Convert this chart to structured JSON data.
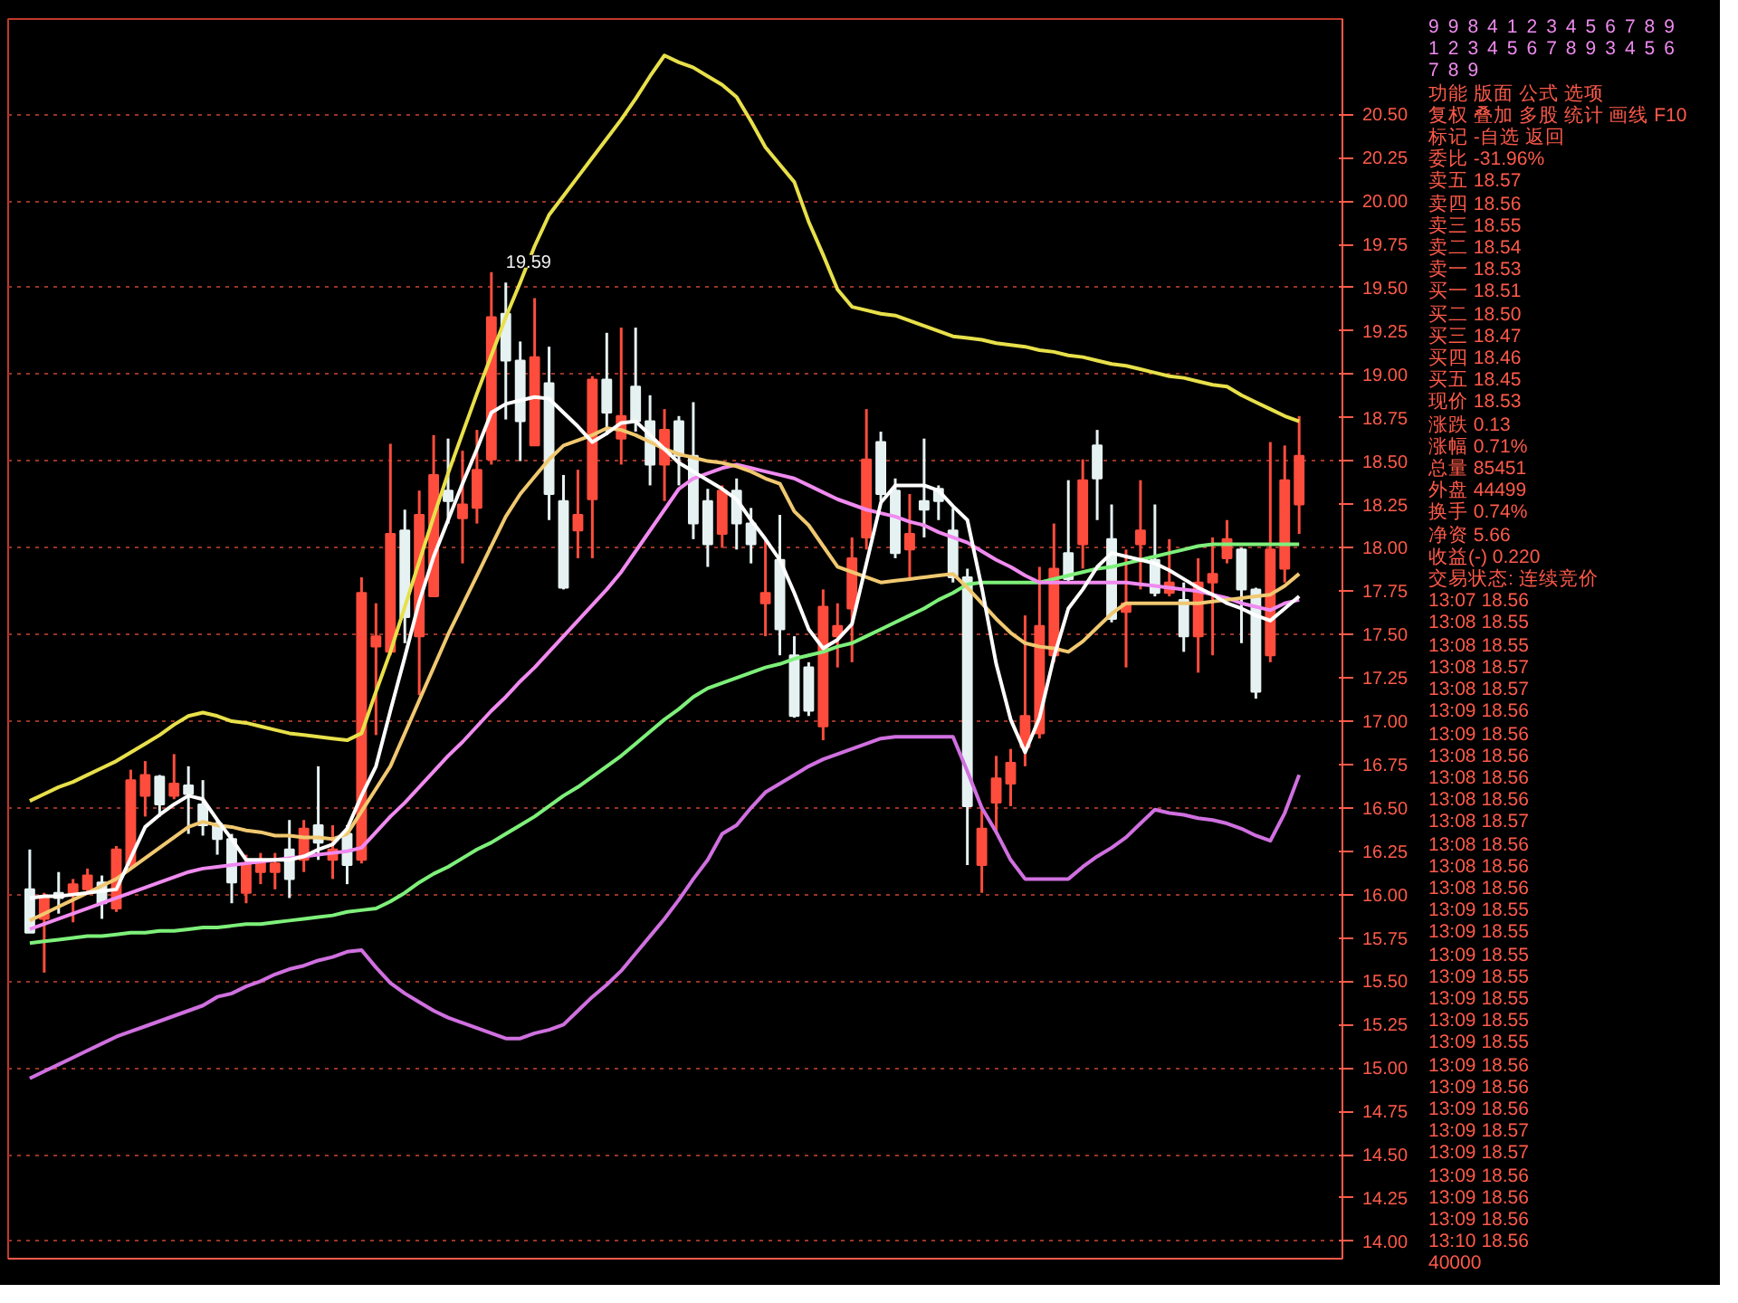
{
  "chart_data": {
    "type": "candlestick",
    "categories": [
      null,
      null,
      null,
      null,
      null,
      null,
      null,
      null,
      null,
      null,
      null,
      null,
      null,
      null,
      null,
      null,
      null,
      null,
      null,
      null,
      null,
      null,
      null,
      null,
      null,
      null,
      null,
      null,
      null,
      null,
      null,
      null,
      null,
      null,
      null,
      null,
      null,
      null,
      null,
      null,
      null,
      null,
      null,
      null,
      null,
      null,
      null,
      null,
      null,
      null,
      null,
      null,
      null,
      null,
      null,
      null,
      null,
      null,
      null,
      null,
      null,
      null,
      null,
      null,
      null,
      null,
      null,
      null,
      null,
      null,
      null,
      null,
      null,
      null,
      null,
      null,
      null,
      null,
      null,
      null,
      null,
      null,
      null,
      null,
      null,
      null,
      null,
      null,
      null
    ],
    "ohlc": [
      [
        16.03,
        16.26,
        15.78,
        15.78
      ],
      [
        15.86,
        16.01,
        15.55,
        15.98
      ],
      [
        16.01,
        16.13,
        15.89,
        15.98
      ],
      [
        16.0,
        16.09,
        15.84,
        16.06
      ],
      [
        16.03,
        16.15,
        16.0,
        16.11
      ],
      [
        16.07,
        16.11,
        15.86,
        15.95
      ],
      [
        15.92,
        16.28,
        15.9,
        16.26
      ],
      [
        16.17,
        16.72,
        16.15,
        16.66
      ],
      [
        16.57,
        16.77,
        16.45,
        16.69
      ],
      [
        16.68,
        16.69,
        16.45,
        16.52
      ],
      [
        16.57,
        16.81,
        16.55,
        16.64
      ],
      [
        16.63,
        16.74,
        16.35,
        16.58
      ],
      [
        16.52,
        16.66,
        16.34,
        16.4
      ],
      [
        16.41,
        16.43,
        16.23,
        16.32
      ],
      [
        16.32,
        16.35,
        15.95,
        16.07
      ],
      [
        16.01,
        16.23,
        15.95,
        16.18
      ],
      [
        16.13,
        16.24,
        16.06,
        16.2
      ],
      [
        16.13,
        16.24,
        16.03,
        16.18
      ],
      [
        16.26,
        16.43,
        15.98,
        16.09
      ],
      [
        16.2,
        16.43,
        16.13,
        16.38
      ],
      [
        16.4,
        16.74,
        16.2,
        16.3
      ],
      [
        16.2,
        16.4,
        16.09,
        16.26
      ],
      [
        16.35,
        16.4,
        16.06,
        16.17
      ],
      [
        16.2,
        17.83,
        16.18,
        17.74
      ],
      [
        17.43,
        17.68,
        16.92,
        17.49
      ],
      [
        17.4,
        18.6,
        17.38,
        18.08
      ],
      [
        18.1,
        18.22,
        17.45,
        17.6
      ],
      [
        17.49,
        18.33,
        17.15,
        18.19
      ],
      [
        17.72,
        18.65,
        17.72,
        18.42
      ],
      [
        18.33,
        18.63,
        18.14,
        18.27
      ],
      [
        18.17,
        18.56,
        17.91,
        18.25
      ],
      [
        18.23,
        18.68,
        18.14,
        18.45
      ],
      [
        18.51,
        19.59,
        18.48,
        19.33
      ],
      [
        19.35,
        19.53,
        18.74,
        19.08
      ],
      [
        19.08,
        19.19,
        18.5,
        18.73
      ],
      [
        18.59,
        19.44,
        18.59,
        19.1
      ],
      [
        18.95,
        19.16,
        18.16,
        18.31
      ],
      [
        18.27,
        18.42,
        17.76,
        17.77
      ],
      [
        18.1,
        18.45,
        17.94,
        18.19
      ],
      [
        18.28,
        18.99,
        17.94,
        18.97
      ],
      [
        18.97,
        19.24,
        18.65,
        18.78
      ],
      [
        18.63,
        19.27,
        18.48,
        18.76
      ],
      [
        18.93,
        19.27,
        18.67,
        18.73
      ],
      [
        18.73,
        18.88,
        18.36,
        18.48
      ],
      [
        18.48,
        18.8,
        18.27,
        18.68
      ],
      [
        18.73,
        18.76,
        18.36,
        18.53
      ],
      [
        18.53,
        18.84,
        18.05,
        18.14
      ],
      [
        18.27,
        18.34,
        17.89,
        18.02
      ],
      [
        18.08,
        18.36,
        18.0,
        18.33
      ],
      [
        18.33,
        18.4,
        17.99,
        18.14
      ],
      [
        18.14,
        18.23,
        17.91,
        18.02
      ],
      [
        17.68,
        18.05,
        17.49,
        17.74
      ],
      [
        17.93,
        18.19,
        17.38,
        17.53
      ],
      [
        17.38,
        17.49,
        17.02,
        17.03
      ],
      [
        17.31,
        17.34,
        17.03,
        17.06
      ],
      [
        16.97,
        17.76,
        16.89,
        17.66
      ],
      [
        17.49,
        17.68,
        17.31,
        17.55
      ],
      [
        17.65,
        18.06,
        17.34,
        17.94
      ],
      [
        18.06,
        18.8,
        17.99,
        18.51
      ],
      [
        18.61,
        18.67,
        18.27,
        18.31
      ],
      [
        18.33,
        18.4,
        17.94,
        17.97
      ],
      [
        17.99,
        18.31,
        17.83,
        18.08
      ],
      [
        18.27,
        18.63,
        18.06,
        18.22
      ],
      [
        18.34,
        18.36,
        18.16,
        18.27
      ],
      [
        18.1,
        18.23,
        17.8,
        17.83
      ],
      [
        17.83,
        17.88,
        16.17,
        16.51
      ],
      [
        16.17,
        16.51,
        16.01,
        16.38
      ],
      [
        16.53,
        16.8,
        16.35,
        16.67
      ],
      [
        16.64,
        16.84,
        16.51,
        16.76
      ],
      [
        16.85,
        17.61,
        16.74,
        17.03
      ],
      [
        16.93,
        17.89,
        16.9,
        17.55
      ],
      [
        17.38,
        18.14,
        17.34,
        17.88
      ],
      [
        17.97,
        18.39,
        17.8,
        17.82
      ],
      [
        18.02,
        18.51,
        17.88,
        18.39
      ],
      [
        18.59,
        18.68,
        18.16,
        18.4
      ],
      [
        18.05,
        18.25,
        17.57,
        17.59
      ],
      [
        17.63,
        17.99,
        17.31,
        17.68
      ],
      [
        18.02,
        18.39,
        17.76,
        18.1
      ],
      [
        17.93,
        18.25,
        17.72,
        17.74
      ],
      [
        17.74,
        18.05,
        17.72,
        17.8
      ],
      [
        17.7,
        17.8,
        17.4,
        17.49
      ],
      [
        17.49,
        17.94,
        17.28,
        17.8
      ],
      [
        17.8,
        18.06,
        17.38,
        17.85
      ],
      [
        17.94,
        18.16,
        17.91,
        18.05
      ],
      [
        17.99,
        18.0,
        17.45,
        17.76
      ],
      [
        17.76,
        17.77,
        17.13,
        17.17
      ],
      [
        17.38,
        18.61,
        17.34,
        17.99
      ],
      [
        17.88,
        18.59,
        17.8,
        18.39
      ],
      [
        18.25,
        18.76,
        18.08,
        18.53
      ]
    ],
    "colors": [
      "#e6f2f2",
      "#ff4d3d",
      "#e6f2f2",
      "#ff4d3d",
      "#ff4d3d",
      "#e6f2f2",
      "#ff4d3d",
      "#ff4d3d",
      "#ff4d3d",
      "#e6f2f2",
      "#ff4d3d",
      "#e6f2f2",
      "#e6f2f2",
      "#e6f2f2",
      "#e6f2f2",
      "#ff4d3d",
      "#ff4d3d",
      "#ff4d3d",
      "#e6f2f2",
      "#ff4d3d",
      "#e6f2f2",
      "#ff4d3d",
      "#e6f2f2",
      "#ff4d3d",
      "#ff4d3d",
      "#ff4d3d",
      "#e6f2f2",
      "#ff4d3d",
      "#ff4d3d",
      "#e6f2f2",
      "#ff4d3d",
      "#ff4d3d",
      "#ff4d3d",
      "#e6f2f2",
      "#e6f2f2",
      "#ff4d3d",
      "#e6f2f2",
      "#e6f2f2",
      "#ff4d3d",
      "#ff4d3d",
      "#e6f2f2",
      "#ff4d3d",
      "#e6f2f2",
      "#e6f2f2",
      "#ff4d3d",
      "#e6f2f2",
      "#e6f2f2",
      "#e6f2f2",
      "#ff4d3d",
      "#e6f2f2",
      "#e6f2f2",
      "#ff4d3d",
      "#e6f2f2",
      "#e6f2f2",
      "#e6f2f2",
      "#ff4d3d",
      "#ff4d3d",
      "#ff4d3d",
      "#ff4d3d",
      "#e6f2f2",
      "#e6f2f2",
      "#ff4d3d",
      "#e6f2f2",
      "#e6f2f2",
      "#e6f2f2",
      "#e6f2f2",
      "#ff4d3d",
      "#ff4d3d",
      "#ff4d3d",
      "#ff4d3d",
      "#ff4d3d",
      "#ff4d3d",
      "#e6f2f2",
      "#ff4d3d",
      "#e6f2f2",
      "#e6f2f2",
      "#ff4d3d",
      "#ff4d3d",
      "#e6f2f2",
      "#ff4d3d",
      "#e6f2f2",
      "#ff4d3d",
      "#ff4d3d",
      "#ff4d3d",
      "#e6f2f2",
      "#e6f2f2",
      "#ff4d3d",
      "#ff4d3d",
      "#ff4d3d"
    ],
    "series": [
      {
        "type": "line",
        "color": "#e8e04a",
        "values": [
          16.54,
          16.58,
          16.62,
          16.65,
          16.69,
          16.73,
          16.77,
          16.82,
          16.87,
          16.92,
          16.98,
          17.03,
          17.05,
          17.03,
          17.0,
          16.99,
          16.97,
          16.95,
          16.93,
          16.92,
          16.91,
          16.9,
          16.89,
          16.93,
          17.17,
          17.4,
          17.66,
          17.92,
          18.18,
          18.43,
          18.66,
          18.89,
          19.11,
          19.33,
          19.53,
          19.74,
          19.92,
          20.03,
          20.14,
          20.25,
          20.36,
          20.47,
          20.59,
          20.72,
          20.84,
          20.8,
          20.77,
          20.72,
          20.67,
          20.6,
          20.46,
          20.31,
          20.21,
          20.11,
          19.88,
          19.69,
          19.49,
          19.39,
          19.37,
          19.35,
          19.34,
          19.31,
          19.28,
          19.25,
          19.22,
          19.21,
          19.2,
          19.18,
          19.17,
          19.16,
          19.14,
          19.13,
          19.11,
          19.1,
          19.08,
          19.06,
          19.05,
          19.03,
          19.01,
          18.99,
          18.98,
          18.96,
          18.94,
          18.93,
          18.88,
          18.84,
          18.8,
          18.76,
          18.73
        ]
      },
      {
        "type": "line",
        "color": "#d070e0",
        "values": [
          14.94,
          14.98,
          15.02,
          15.06,
          15.1,
          15.14,
          15.18,
          15.21,
          15.24,
          15.27,
          15.3,
          15.33,
          15.36,
          15.41,
          15.43,
          15.47,
          15.5,
          15.54,
          15.57,
          15.59,
          15.62,
          15.64,
          15.67,
          15.68,
          15.58,
          15.49,
          15.43,
          15.38,
          15.33,
          15.29,
          15.26,
          15.23,
          15.2,
          15.17,
          15.17,
          15.2,
          15.22,
          15.25,
          15.33,
          15.41,
          15.48,
          15.56,
          15.66,
          15.76,
          15.86,
          15.97,
          16.09,
          16.2,
          16.35,
          16.4,
          16.5,
          16.59,
          16.64,
          16.69,
          16.74,
          16.78,
          16.81,
          16.84,
          16.87,
          16.9,
          16.91,
          16.91,
          16.91,
          16.91,
          16.91,
          16.71,
          16.5,
          16.36,
          16.2,
          16.09,
          16.09,
          16.09,
          16.09,
          16.16,
          16.22,
          16.27,
          16.33,
          16.41,
          16.49,
          16.47,
          16.46,
          16.44,
          16.43,
          16.41,
          16.38,
          16.34,
          16.31,
          16.47,
          16.69
        ]
      },
      {
        "type": "line",
        "color": "#7ef07a",
        "values": [
          15.72,
          15.73,
          15.74,
          15.75,
          15.76,
          15.76,
          15.77,
          15.78,
          15.78,
          15.79,
          15.79,
          15.8,
          15.81,
          15.81,
          15.82,
          15.83,
          15.83,
          15.84,
          15.85,
          15.86,
          15.87,
          15.88,
          15.9,
          15.91,
          15.92,
          15.96,
          16.01,
          16.07,
          16.12,
          16.16,
          16.21,
          16.26,
          16.3,
          16.35,
          16.4,
          16.45,
          16.51,
          16.57,
          16.62,
          16.68,
          16.74,
          16.8,
          16.87,
          16.94,
          17.01,
          17.07,
          17.14,
          17.19,
          17.22,
          17.25,
          17.28,
          17.31,
          17.33,
          17.36,
          17.38,
          17.4,
          17.43,
          17.45,
          17.49,
          17.53,
          17.57,
          17.61,
          17.65,
          17.7,
          17.74,
          17.79,
          17.8,
          17.8,
          17.8,
          17.8,
          17.8,
          17.82,
          17.84,
          17.86,
          17.88,
          17.89,
          17.91,
          17.93,
          17.95,
          17.97,
          17.99,
          18.01,
          18.02,
          18.02,
          18.02,
          18.02,
          18.02,
          18.02,
          18.02
        ]
      },
      {
        "type": "line",
        "color": "#f08af0",
        "values": [
          15.8,
          15.83,
          15.86,
          15.89,
          15.92,
          15.95,
          15.98,
          16.01,
          16.04,
          16.07,
          16.1,
          16.13,
          16.15,
          16.16,
          16.17,
          16.18,
          16.19,
          16.2,
          16.21,
          16.22,
          16.23,
          16.24,
          16.25,
          16.27,
          16.36,
          16.45,
          16.53,
          16.62,
          16.71,
          16.8,
          16.88,
          16.97,
          17.06,
          17.14,
          17.23,
          17.31,
          17.4,
          17.49,
          17.58,
          17.67,
          17.76,
          17.86,
          17.98,
          18.1,
          18.22,
          18.34,
          18.4,
          18.43,
          18.46,
          18.48,
          18.46,
          18.44,
          18.42,
          18.4,
          18.36,
          18.32,
          18.28,
          18.25,
          18.22,
          18.2,
          18.18,
          18.15,
          18.13,
          18.09,
          18.06,
          18.03,
          17.98,
          17.93,
          17.89,
          17.84,
          17.8,
          17.8,
          17.8,
          17.8,
          17.8,
          17.8,
          17.8,
          17.79,
          17.78,
          17.77,
          17.76,
          17.75,
          17.73,
          17.71,
          17.68,
          17.66,
          17.64,
          17.68,
          17.7
        ]
      },
      {
        "type": "line",
        "color": "#f0c870",
        "values": [
          15.85,
          15.89,
          15.93,
          15.97,
          16.01,
          16.05,
          16.09,
          16.15,
          16.21,
          16.27,
          16.33,
          16.39,
          16.42,
          16.4,
          16.39,
          16.37,
          16.36,
          16.34,
          16.34,
          16.33,
          16.33,
          16.32,
          16.35,
          16.48,
          16.61,
          16.74,
          16.93,
          17.12,
          17.31,
          17.5,
          17.67,
          17.84,
          18.01,
          18.18,
          18.31,
          18.41,
          18.51,
          18.59,
          18.62,
          18.65,
          18.69,
          18.68,
          18.65,
          18.61,
          18.57,
          18.54,
          18.52,
          18.5,
          18.49,
          18.47,
          18.44,
          18.4,
          18.37,
          18.21,
          18.13,
          18.01,
          17.89,
          17.86,
          17.83,
          17.8,
          17.81,
          17.82,
          17.83,
          17.84,
          17.85,
          17.77,
          17.68,
          17.59,
          17.51,
          17.45,
          17.43,
          17.42,
          17.4,
          17.46,
          17.54,
          17.62,
          17.68,
          17.68,
          17.68,
          17.68,
          17.68,
          17.68,
          17.69,
          17.7,
          17.71,
          17.72,
          17.73,
          17.78,
          17.85
        ]
      },
      {
        "type": "line",
        "color": "#ffffff",
        "values": [
          15.98,
          15.99,
          15.99,
          16.0,
          16.01,
          16.02,
          16.03,
          16.21,
          16.39,
          16.46,
          16.52,
          16.57,
          16.55,
          16.43,
          16.32,
          16.2,
          16.2,
          16.2,
          16.2,
          16.22,
          16.26,
          16.29,
          16.38,
          16.57,
          16.74,
          17.06,
          17.37,
          17.69,
          17.95,
          18.16,
          18.37,
          18.57,
          18.78,
          18.83,
          18.85,
          18.87,
          18.86,
          18.78,
          18.7,
          18.61,
          18.66,
          18.72,
          18.73,
          18.65,
          18.57,
          18.49,
          18.44,
          18.39,
          18.34,
          18.28,
          18.16,
          18.05,
          17.93,
          17.74,
          17.53,
          17.42,
          17.47,
          17.56,
          17.91,
          18.26,
          18.36,
          18.36,
          18.36,
          18.33,
          18.24,
          18.16,
          17.77,
          17.33,
          17.01,
          16.82,
          17.02,
          17.37,
          17.65,
          17.76,
          17.89,
          17.97,
          17.95,
          17.93,
          17.91,
          17.87,
          17.82,
          17.77,
          17.73,
          17.68,
          17.65,
          17.61,
          17.58,
          17.65,
          17.72
        ]
      }
    ],
    "ylim": [
      13.9,
      21.05
    ],
    "yticks": [
      {
        "value": 14.0,
        "label": "14.00"
      },
      {
        "value": 14.25,
        "label": "14.25"
      },
      {
        "value": 14.5,
        "label": "14.50"
      },
      {
        "value": 14.75,
        "label": "14.75"
      },
      {
        "value": 15.0,
        "label": "15.00"
      },
      {
        "value": 15.25,
        "label": "15.25"
      },
      {
        "value": 15.5,
        "label": "15.50"
      },
      {
        "value": 15.75,
        "label": "15.75"
      },
      {
        "value": 16.0,
        "label": "16.00"
      },
      {
        "value": 16.25,
        "label": "16.25"
      },
      {
        "value": 16.5,
        "label": "16.50"
      },
      {
        "value": 16.75,
        "label": "16.75"
      },
      {
        "value": 17.0,
        "label": "17.00"
      },
      {
        "value": 17.25,
        "label": "17.25"
      },
      {
        "value": 17.5,
        "label": "17.50"
      },
      {
        "value": 17.75,
        "label": "17.75"
      },
      {
        "value": 18.0,
        "label": "18.00"
      },
      {
        "value": 18.25,
        "label": "18.25"
      },
      {
        "value": 18.5,
        "label": "18.50"
      },
      {
        "value": 18.75,
        "label": "18.75"
      },
      {
        "value": 19.0,
        "label": "19.00"
      },
      {
        "value": 19.25,
        "label": "19.25"
      },
      {
        "value": 19.5,
        "label": "19.50"
      },
      {
        "value": 19.75,
        "label": "19.75"
      },
      {
        "value": 20.0,
        "label": "20.00"
      },
      {
        "value": 20.25,
        "label": "20.25"
      },
      {
        "value": 20.5,
        "label": "20.50"
      }
    ],
    "tick_labels": "y",
    "grid": "y",
    "annotations": [
      {
        "text": "19.59",
        "y": 19.59
      },
      "9",
      "9",
      "8",
      "4",
      "1",
      "2",
      "3",
      "4",
      "5",
      "6",
      "7",
      "8",
      "9",
      "1",
      "2",
      "3",
      "4",
      "5",
      "6",
      "7",
      "8",
      "9",
      "3",
      "4",
      "5",
      "6",
      "7",
      "8",
      "9",
      "功能 版面 公式 选项",
      "复权 叠加 多股 统计 画线 F10 标记 -自选 返回",
      "委比 -31.96%",
      "卖五 18.57",
      "卖四 18.56",
      "卖三 18.55",
      "卖二 18.54",
      "卖一 18.53",
      "买一 18.51",
      "买二 18.50",
      "买三 18.47",
      "买四 18.46",
      "买五 18.45",
      "现价 18.53",
      "涨跌 0.13",
      "涨幅 0.71%",
      "总量 85451",
      "外盘 44499",
      "换手 0.74%",
      "净资 5.66",
      "收益(-) 0.220",
      "交易状态: 连续竞价",
      "13:07 18.56",
      "13:08 18.55",
      "13:08 18.55",
      "13:08 18.57",
      "13:08 18.57",
      "13:09 18.56",
      "13:09 18.56",
      "13:08 18.56",
      "13:08 18.56",
      "13:08 18.56",
      "13:08 18.57",
      "13:08 18.56",
      "13:08 18.56",
      "13:08 18.56",
      "13:09 18.55",
      "13:09 18.55",
      "13:09 18.55",
      "13:09 18.55",
      "13:09 18.55",
      "13:09 18.55",
      "13:09 18.55",
      "13:09 18.56",
      "13:09 18.56",
      "13:09 18.56",
      "13:09 18.57",
      "13:09 18.57",
      "13:09 18.56",
      "13:09 18.56",
      "13:09 18.56",
      "13:10 18.56",
      "40000"
    ]
  }
}
